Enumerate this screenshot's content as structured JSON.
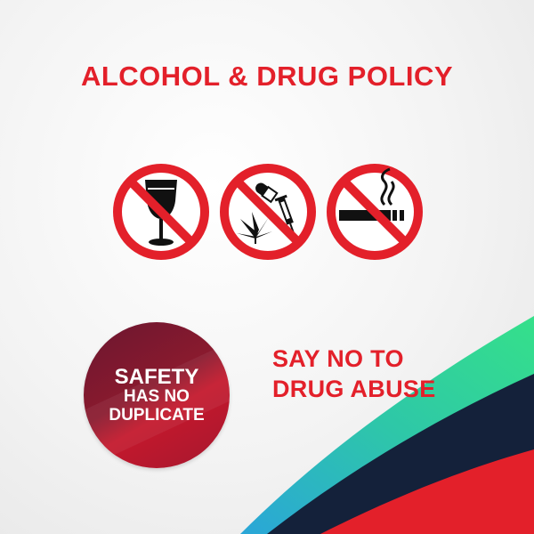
{
  "title": "ALCOHOL & DRUG POLICY",
  "signs": [
    {
      "icon": "no-alcohol-icon"
    },
    {
      "icon": "no-drugs-icon"
    },
    {
      "icon": "no-smoking-icon"
    }
  ],
  "badge": {
    "line1": "SAFETY",
    "line2": "HAS NO",
    "line3": "DUPLICATE"
  },
  "slogan": {
    "line1": "SAY NO TO",
    "line2": "DRUG ABUSE"
  },
  "colors": {
    "accent_red": "#e3202a",
    "badge_dark": "#6b1630",
    "wave_green": "#2fd48f",
    "wave_navy": "#14213a",
    "wave_red": "#e3202a"
  }
}
